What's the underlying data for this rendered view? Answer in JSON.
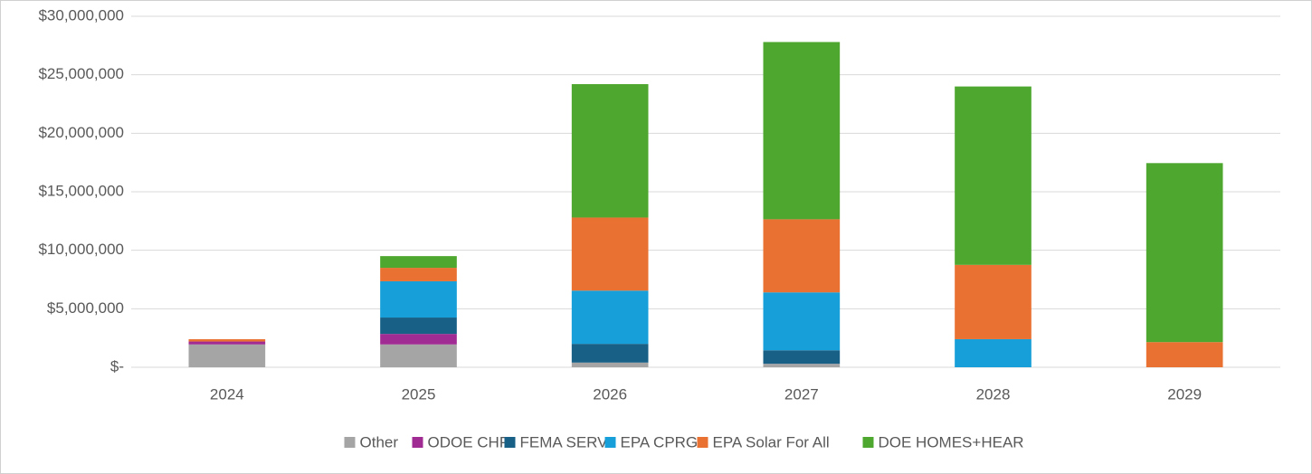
{
  "chart_data": {
    "type": "stacked_bar",
    "categories": [
      "2024",
      "2025",
      "2026",
      "2027",
      "2028",
      "2029"
    ],
    "series": [
      {
        "name": "Other",
        "color": "#a5a5a5",
        "values": [
          1950000,
          1950000,
          400000,
          300000,
          0,
          0
        ]
      },
      {
        "name": "ODOE CHP",
        "color": "#a02b93",
        "values": [
          250000,
          900000,
          0,
          0,
          0,
          0
        ]
      },
      {
        "name": "FEMA SERV",
        "color": "#196087",
        "values": [
          0,
          1400000,
          1600000,
          1150000,
          0,
          0
        ]
      },
      {
        "name": "EPA CPRG",
        "color": "#169fd8",
        "values": [
          0,
          3100000,
          4550000,
          4950000,
          2400000,
          0
        ]
      },
      {
        "name": "EPA Solar For All",
        "color": "#e97132",
        "values": [
          200000,
          1150000,
          6250000,
          6250000,
          6350000,
          2150000
        ]
      },
      {
        "name": "DOE HOMES+HEAR",
        "color": "#4ea72e",
        "values": [
          0,
          1000000,
          11400000,
          15150000,
          15250000,
          15300000
        ]
      }
    ],
    "ylim": [
      0,
      30000000
    ],
    "yticks": [
      {
        "value": 0,
        "label": "$-"
      },
      {
        "value": 5000000,
        "label": "$5,000,000"
      },
      {
        "value": 10000000,
        "label": "$10,000,000"
      },
      {
        "value": 15000000,
        "label": "$15,000,000"
      },
      {
        "value": 20000000,
        "label": "$20,000,000"
      },
      {
        "value": 25000000,
        "label": "$25,000,000"
      },
      {
        "value": 30000000,
        "label": "$30,000,000"
      }
    ],
    "grid": true,
    "legend": "bottom"
  }
}
